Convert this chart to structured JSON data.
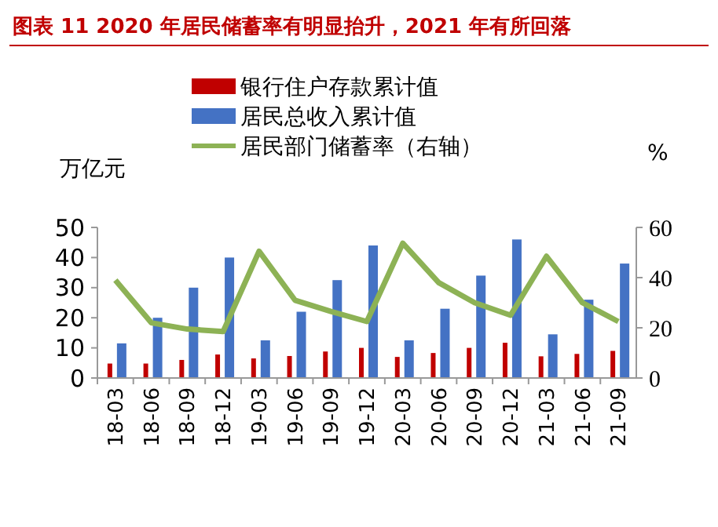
{
  "chart_data": {
    "type": "bar",
    "title": "图表 11 2020 年居民储蓄率有明显抬升，2021 年有所回落",
    "ylabel": "万亿元",
    "y2label": "%",
    "categories": [
      "18-03",
      "18-06",
      "18-09",
      "18-12",
      "19-03",
      "19-06",
      "19-09",
      "19-12",
      "20-03",
      "20-06",
      "20-09",
      "20-12",
      "21-03",
      "21-06",
      "21-09"
    ],
    "series": [
      {
        "name": "银行住户存款累计值",
        "color": "#c00000",
        "values": [
          4.8,
          4.8,
          6,
          7.8,
          6.5,
          7.3,
          8.8,
          10,
          7,
          8.3,
          10,
          11.7,
          7.2,
          8,
          9
        ]
      },
      {
        "name": "居民总收入累计值",
        "color": "#4472c4",
        "values": [
          11.5,
          20,
          30,
          40,
          12.5,
          22,
          32.5,
          44,
          12.5,
          23,
          34,
          46,
          14.5,
          26,
          38
        ]
      },
      {
        "name": "居民部门储蓄率（右轴）",
        "type": "line",
        "axis": "y2",
        "color": "#8db255",
        "values": [
          39,
          22,
          19.5,
          18.5,
          50.5,
          31,
          26.5,
          22.5,
          53.7,
          38,
          30,
          25,
          48.5,
          30,
          22.5
        ]
      }
    ],
    "ylim": [
      0,
      50
    ],
    "yticks": [
      0,
      10,
      20,
      30,
      40,
      50
    ],
    "y2lim": [
      0,
      60
    ],
    "y2ticks": [
      0,
      20,
      40,
      60
    ],
    "legend": "top",
    "grid": false
  }
}
